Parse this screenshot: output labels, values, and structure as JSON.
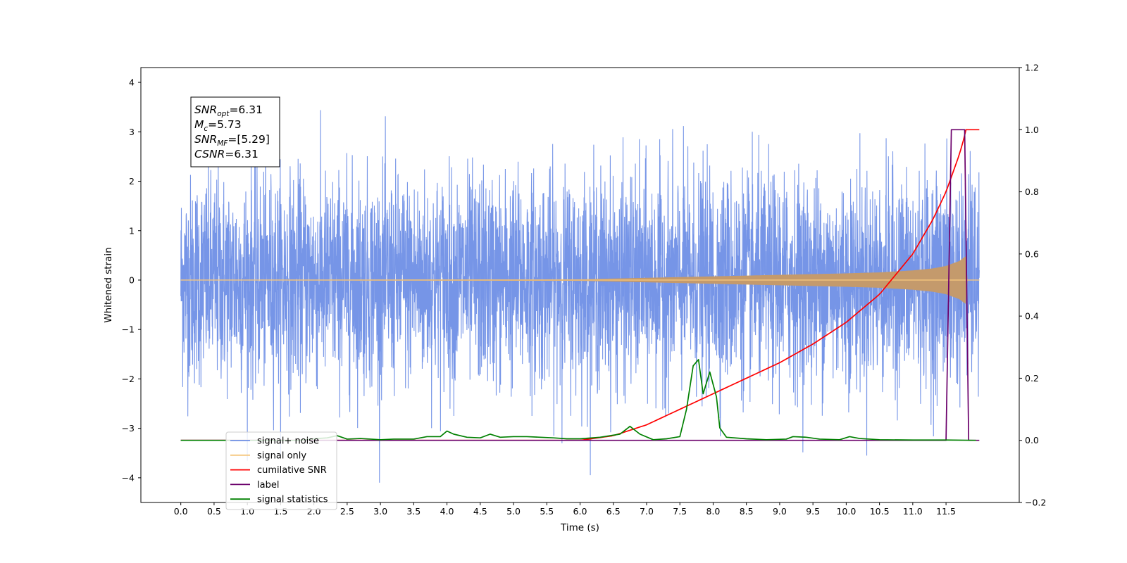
{
  "chart_data": {
    "type": "line",
    "title": "",
    "xlabel": "Time (s)",
    "ylabel_left": "Whitened strain",
    "ylabel_right": "",
    "xlim": [
      -0.6,
      12.6
    ],
    "ylim_left": [
      -4.5,
      4.3
    ],
    "ylim_right": [
      -0.2,
      1.2
    ],
    "x_ticks": [
      "0.0",
      "0.5",
      "1.0",
      "1.5",
      "2.0",
      "2.5",
      "3.0",
      "3.5",
      "4.0",
      "4.5",
      "5.0",
      "5.5",
      "6.0",
      "6.5",
      "7.0",
      "7.5",
      "8.0",
      "8.5",
      "9.0",
      "9.5",
      "10.0",
      "10.5",
      "11.0",
      "11.5"
    ],
    "y_ticks_left": [
      "4",
      "3",
      "2",
      "1",
      "0",
      "−1",
      "−2",
      "−3",
      "−4"
    ],
    "y_ticks_right": [
      "1.2",
      "1.0",
      "0.8",
      "0.6",
      "0.4",
      "0.2",
      "0.0",
      "−0.2"
    ],
    "grid": false,
    "legend_position": "lower-left",
    "annotation": {
      "lines": [
        {
          "base": "SNR",
          "sub": "opt",
          "value": "=6.31"
        },
        {
          "base": "M",
          "sub": "c",
          "value": "=5.73"
        },
        {
          "base": "SNR",
          "sub": "MF",
          "value": "=[5.29]"
        },
        {
          "base": "CSNR",
          "sub": "",
          "value": "=6.31"
        }
      ]
    },
    "legend": [
      {
        "label": "signal+ noise",
        "color": "#6f8fe6"
      },
      {
        "label": "signal only",
        "color": "#f5c77e"
      },
      {
        "label": "cumilative SNR",
        "color": "#ff0000"
      },
      {
        "label": "label",
        "color": "#6b006b"
      },
      {
        "label": "signal statistics",
        "color": "#008000"
      }
    ],
    "series": [
      {
        "name": "signal+ noise",
        "axis": "left",
        "color": "#6f8fe6",
        "x_range": [
          0,
          12.0
        ],
        "envelope_typical": 2.2,
        "envelope_peak": [
          -4.1,
          3.9
        ]
      },
      {
        "name": "signal only",
        "axis": "left",
        "color": "#c49a6c",
        "amplitude_envelope": {
          "x": [
            0,
            6.0,
            7.0,
            8.0,
            9.0,
            10.0,
            10.5,
            11.0,
            11.3,
            11.5,
            11.7,
            11.8,
            11.82,
            12.0
          ],
          "y": [
            0,
            0.01,
            0.04,
            0.07,
            0.1,
            0.13,
            0.15,
            0.19,
            0.23,
            0.28,
            0.38,
            0.48,
            0,
            0
          ]
        }
      },
      {
        "name": "cumilative SNR",
        "axis": "right",
        "color": "#ff0000",
        "x": [
          0,
          6.0,
          6.5,
          7.0,
          7.5,
          8.0,
          8.5,
          9.0,
          9.5,
          10.0,
          10.5,
          11.0,
          11.3,
          11.5,
          11.7,
          11.78,
          11.8,
          12.0
        ],
        "y": [
          0,
          0.0,
          0.015,
          0.05,
          0.1,
          0.15,
          0.2,
          0.25,
          0.31,
          0.38,
          0.47,
          0.6,
          0.71,
          0.8,
          0.92,
          0.98,
          1.0,
          1.0
        ]
      },
      {
        "name": "label",
        "axis": "right",
        "color": "#6b006b",
        "x": [
          0,
          11.5,
          11.58,
          11.78,
          11.84,
          12.0
        ],
        "y": [
          0,
          0,
          1.0,
          1.0,
          0,
          0
        ]
      },
      {
        "name": "signal statistics",
        "axis": "right",
        "color": "#008000",
        "x": [
          0,
          1.8,
          2.0,
          2.2,
          2.35,
          2.5,
          2.7,
          3.0,
          3.2,
          3.5,
          3.7,
          3.9,
          4.0,
          4.1,
          4.3,
          4.5,
          4.65,
          4.8,
          5.0,
          5.2,
          5.4,
          5.6,
          5.8,
          6.0,
          6.3,
          6.6,
          6.75,
          6.9,
          7.1,
          7.3,
          7.5,
          7.6,
          7.7,
          7.78,
          7.85,
          7.95,
          8.05,
          8.1,
          8.2,
          8.5,
          8.8,
          9.1,
          9.2,
          9.4,
          9.6,
          9.9,
          10.05,
          10.2,
          10.5,
          11.0,
          11.5,
          11.95
        ],
        "y": [
          0,
          0.0,
          0.005,
          0.008,
          0.015,
          0.004,
          0.006,
          0.002,
          0.004,
          0.004,
          0.012,
          0.012,
          0.03,
          0.02,
          0.01,
          0.008,
          0.02,
          0.01,
          0.012,
          0.012,
          0.01,
          0.008,
          0.005,
          0.005,
          0.01,
          0.02,
          0.045,
          0.02,
          0.002,
          0.005,
          0.012,
          0.1,
          0.24,
          0.26,
          0.15,
          0.22,
          0.14,
          0.04,
          0.01,
          0.005,
          0.002,
          0.004,
          0.012,
          0.01,
          0.004,
          0.002,
          0.012,
          0.006,
          0.002,
          0.001,
          0.001,
          0.0
        ]
      }
    ]
  }
}
